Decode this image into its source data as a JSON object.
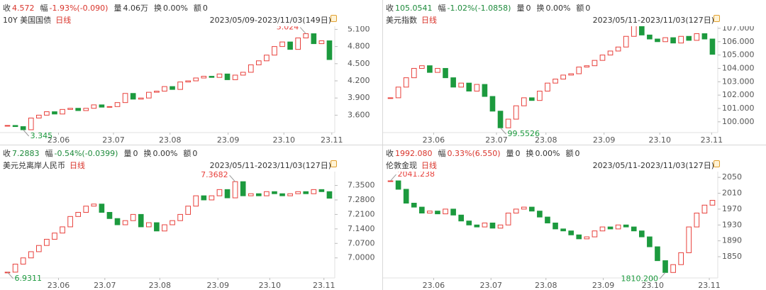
{
  "chart_data": [
    {
      "type": "candlestick",
      "title": "10Y 美国国债",
      "period": "日线",
      "subtitle": "2023/05/09-2023/11/03(149日)",
      "quote": [
        {
          "label": "收",
          "value": "4.572",
          "color": "#d9342b"
        },
        {
          "label": "幅",
          "value": "-1.93%(-0.090)",
          "color": "#d9342b"
        },
        {
          "label": "量",
          "value": "4.06万"
        },
        {
          "label": "换",
          "value": "0.00%"
        },
        {
          "label": "额",
          "value": "0"
        }
      ],
      "values": [
        3.42,
        3.4,
        3.345,
        3.55,
        3.6,
        3.66,
        3.62,
        3.7,
        3.72,
        3.68,
        3.72,
        3.78,
        3.74,
        3.75,
        3.82,
        3.98,
        3.88,
        3.9,
        4.0,
        4.02,
        4.1,
        4.05,
        4.18,
        4.2,
        4.25,
        4.28,
        4.26,
        4.32,
        4.22,
        4.3,
        4.35,
        4.48,
        4.55,
        4.65,
        4.8,
        4.88,
        4.75,
        4.95,
        5.024,
        4.85,
        4.9,
        4.572
      ],
      "max_label": "5.024",
      "min_label": "3.345",
      "up_color": "#e8413c",
      "down_color": "#1c9a3e",
      "xlim": [
        -0.5,
        41.5
      ],
      "xticks": [
        {
          "value": 6.5,
          "label": "23.06"
        },
        {
          "value": 13.5,
          "label": "23.07"
        },
        {
          "value": 20.7,
          "label": "23.08"
        },
        {
          "value": 28.1,
          "label": "23.09"
        },
        {
          "value": 35.2,
          "label": "23.10"
        },
        {
          "value": 41.3,
          "label": "23.11"
        }
      ],
      "ylim": [
        3.32,
        5.13
      ],
      "yticks": [
        {
          "value": 5.1,
          "label": "5.100"
        },
        {
          "value": 4.8,
          "label": "4.800"
        },
        {
          "value": 4.5,
          "label": "4.500"
        },
        {
          "value": 4.2,
          "label": "4.200"
        },
        {
          "value": 3.9,
          "label": "3.900"
        },
        {
          "value": 3.6,
          "label": "3.600"
        }
      ]
    },
    {
      "type": "candlestick",
      "title": "美元指数",
      "period": "日线",
      "subtitle": "2023/05/11-2023/11/03(127日)",
      "quote": [
        {
          "label": "收",
          "value": "105.0541",
          "color": "#1c8a3a"
        },
        {
          "label": "幅",
          "value": "-1.02%(-1.0858)",
          "color": "#1c8a3a"
        },
        {
          "label": "量",
          "value": "0"
        },
        {
          "label": "换",
          "value": "0.00%"
        },
        {
          "label": "额",
          "value": "0"
        }
      ],
      "values": [
        101.8,
        102.6,
        103.3,
        104.0,
        104.2,
        103.7,
        104.0,
        103.3,
        102.6,
        102.9,
        102.3,
        102.8,
        101.9,
        100.8,
        99.5526,
        100.2,
        101.2,
        101.8,
        101.6,
        102.3,
        102.9,
        103.2,
        103.5,
        103.6,
        104.1,
        104.2,
        104.6,
        105.0,
        105.3,
        105.6,
        106.4,
        107.3532,
        106.5,
        106.2,
        106.0,
        106.3,
        105.9,
        106.4,
        106.1,
        106.6,
        106.2,
        105.0541
      ],
      "max_label": "107.3532",
      "min_label": "99.5526",
      "up_color": "#e8413c",
      "down_color": "#1c9a3e",
      "xlim": [
        -0.5,
        41.5
      ],
      "xticks": [
        {
          "value": 5.5,
          "label": "23.06"
        },
        {
          "value": 13.5,
          "label": "23.07"
        },
        {
          "value": 19.8,
          "label": "23.08"
        },
        {
          "value": 27.2,
          "label": "23.09"
        },
        {
          "value": 34.3,
          "label": "23.10"
        },
        {
          "value": 40.9,
          "label": "23.11"
        }
      ],
      "ylim": [
        99.3,
        107.05
      ],
      "yticks": [
        {
          "value": 107,
          "label": "107.000"
        },
        {
          "value": 106,
          "label": "106.000"
        },
        {
          "value": 105,
          "label": "105.000"
        },
        {
          "value": 104,
          "label": "104.000"
        },
        {
          "value": 103,
          "label": "103.000"
        },
        {
          "value": 102,
          "label": "102.000"
        },
        {
          "value": 101,
          "label": "101.000"
        },
        {
          "value": 100,
          "label": "100.000"
        }
      ]
    },
    {
      "type": "candlestick",
      "title": "美元兑离岸人民币",
      "period": "日线",
      "subtitle": "2023/05/11-2023/11/03(127日)",
      "quote": [
        {
          "label": "收",
          "value": "7.2883",
          "color": "#1c8a3a"
        },
        {
          "label": "幅",
          "value": "-0.54%(-0.0399)",
          "color": "#1c8a3a"
        },
        {
          "label": "量",
          "value": "0"
        },
        {
          "label": "换",
          "value": "0.00%"
        },
        {
          "label": "额",
          "value": "0"
        }
      ],
      "values": [
        6.9311,
        6.97,
        7.0,
        7.03,
        7.06,
        7.09,
        7.12,
        7.15,
        7.2,
        7.22,
        7.25,
        7.26,
        7.22,
        7.19,
        7.16,
        7.18,
        7.21,
        7.15,
        7.17,
        7.13,
        7.16,
        7.18,
        7.21,
        7.25,
        7.3,
        7.28,
        7.3,
        7.33,
        7.29,
        7.3682,
        7.3,
        7.31,
        7.3,
        7.32,
        7.31,
        7.3,
        7.31,
        7.32,
        7.31,
        7.33,
        7.32,
        7.2883
      ],
      "max_label": "7.3682",
      "min_label": "6.9311",
      "up_color": "#e8413c",
      "down_color": "#1c9a3e",
      "xlim": [
        -0.5,
        41.5
      ],
      "xticks": [
        {
          "value": 6.5,
          "label": "23.06"
        },
        {
          "value": 12.4,
          "label": "23.07"
        },
        {
          "value": 19.4,
          "label": "23.08"
        },
        {
          "value": 26.8,
          "label": "23.09"
        },
        {
          "value": 33.4,
          "label": "23.10"
        },
        {
          "value": 40.3,
          "label": "23.11"
        }
      ],
      "ylim": [
        6.91,
        7.41
      ],
      "yticks": [
        {
          "value": 7.35,
          "label": "7.3500"
        },
        {
          "value": 7.28,
          "label": "7.2800"
        },
        {
          "value": 7.21,
          "label": "7.2100"
        },
        {
          "value": 7.14,
          "label": "7.1400"
        },
        {
          "value": 7.07,
          "label": "7.0700"
        },
        {
          "value": 7,
          "label": "7.0000"
        }
      ]
    },
    {
      "type": "candlestick",
      "title": "伦敦金现",
      "period": "日线",
      "subtitle": "2023/05/11-2023/11/03(127日)",
      "quote": [
        {
          "label": "收",
          "value": "1992.080",
          "color": "#d9342b"
        },
        {
          "label": "幅",
          "value": "0.33%(6.550)",
          "color": "#d9342b"
        },
        {
          "label": "量",
          "value": "0"
        },
        {
          "label": "换",
          "value": "0.00%"
        },
        {
          "label": "额",
          "value": "0"
        }
      ],
      "values": [
        2041.238,
        2020,
        1985,
        1975,
        1960,
        1965,
        1958,
        1970,
        1955,
        1940,
        1930,
        1925,
        1935,
        1922,
        1930,
        1960,
        1970,
        1975,
        1965,
        1950,
        1935,
        1920,
        1915,
        1905,
        1895,
        1900,
        1915,
        1925,
        1920,
        1930,
        1925,
        1915,
        1900,
        1875,
        1840,
        1810.2,
        1830,
        1860,
        1925,
        1960,
        1980,
        1992.08
      ],
      "max_label": "2041.238",
      "min_label": "1810.200",
      "up_color": "#e8413c",
      "down_color": "#1c9a3e",
      "xlim": [
        -0.5,
        41.5
      ],
      "xticks": [
        {
          "value": 5.5,
          "label": "23.06"
        },
        {
          "value": 12.8,
          "label": "23.07"
        },
        {
          "value": 19.8,
          "label": "23.08"
        },
        {
          "value": 27.1,
          "label": "23.09"
        },
        {
          "value": 33.4,
          "label": "23.10"
        },
        {
          "value": 40.6,
          "label": "23.11"
        }
      ],
      "ylim": [
        1800,
        2061
      ],
      "yticks": [
        2050,
        2010,
        1970,
        1930,
        1890,
        1850
      ]
    }
  ]
}
